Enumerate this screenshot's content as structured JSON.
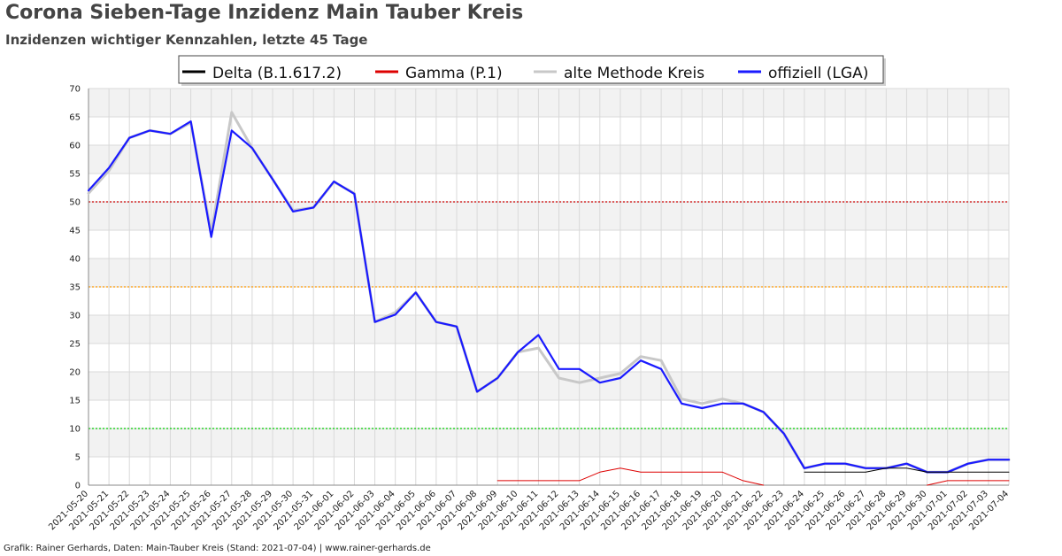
{
  "header": {
    "title": "Corona Sieben-Tage Inzidenz Main Tauber Kreis",
    "subtitle": "Inzidenzen wichtiger Kennzahlen, letzte 45 Tage"
  },
  "footer": {
    "credit": "Grafik: Rainer Gerhards, Daten: Main-Tauber Kreis (Stand: 2021-07-04) | www.rainer-gerhards.de"
  },
  "colors": {
    "band": "#f2f2f2",
    "grid": "#d9d9d9",
    "threshold_50": "#cc0000",
    "threshold_35": "#ff9900",
    "threshold_10": "#00cc00"
  },
  "chart_data": {
    "type": "line",
    "x": [
      "2021-05-20",
      "2021-05-21",
      "2021-05-22",
      "2021-05-23",
      "2021-05-24",
      "2021-05-25",
      "2021-05-26",
      "2021-05-27",
      "2021-05-28",
      "2021-05-29",
      "2021-05-30",
      "2021-05-31",
      "2021-06-01",
      "2021-06-02",
      "2021-06-03",
      "2021-06-04",
      "2021-06-05",
      "2021-06-06",
      "2021-06-07",
      "2021-06-08",
      "2021-06-09",
      "2021-06-10",
      "2021-06-11",
      "2021-06-12",
      "2021-06-13",
      "2021-06-14",
      "2021-06-15",
      "2021-06-16",
      "2021-06-17",
      "2021-06-18",
      "2021-06-19",
      "2021-06-20",
      "2021-06-21",
      "2021-06-22",
      "2021-06-23",
      "2021-06-24",
      "2021-06-25",
      "2021-06-26",
      "2021-06-27",
      "2021-06-28",
      "2021-06-29",
      "2021-06-30",
      "2021-07-01",
      "2021-07-02",
      "2021-07-03",
      "2021-07-04"
    ],
    "ylim": [
      0,
      70
    ],
    "yticks": [
      0,
      5,
      10,
      15,
      20,
      25,
      30,
      35,
      40,
      45,
      50,
      55,
      60,
      65,
      70
    ],
    "grid": true,
    "legend_position": "top-center",
    "thresholds": [
      {
        "value": 50,
        "color": "#cc0000"
      },
      {
        "value": 35,
        "color": "#ff9900"
      },
      {
        "value": 10,
        "color": "#00cc00"
      }
    ],
    "series": [
      {
        "name": "Delta (B.1.617.2)",
        "color": "#000000",
        "width": 1,
        "values": [
          null,
          null,
          null,
          null,
          null,
          null,
          null,
          null,
          null,
          null,
          null,
          null,
          null,
          null,
          null,
          null,
          null,
          null,
          null,
          null,
          null,
          null,
          null,
          null,
          null,
          null,
          null,
          null,
          null,
          null,
          null,
          null,
          null,
          null,
          null,
          2.3,
          2.3,
          2.3,
          2.3,
          3.0,
          3.0,
          2.3,
          2.3,
          2.3,
          2.3,
          2.3
        ]
      },
      {
        "name": "Gamma (P.1)",
        "color": "#dd0000",
        "width": 1,
        "values": [
          null,
          null,
          null,
          null,
          null,
          null,
          null,
          null,
          null,
          null,
          null,
          null,
          null,
          null,
          null,
          null,
          null,
          null,
          null,
          null,
          0.8,
          0.8,
          0.8,
          0.8,
          0.8,
          2.3,
          3.0,
          2.3,
          2.3,
          2.3,
          2.3,
          2.3,
          0.8,
          0,
          null,
          null,
          null,
          null,
          null,
          null,
          null,
          0,
          0.8,
          0.8,
          0.8,
          0.8
        ]
      },
      {
        "name": "alte Methode Kreis",
        "color": "#c8c8c8",
        "width": 3,
        "values": [
          51.5,
          55.5,
          61.3,
          62.6,
          62.0,
          64.0,
          44.5,
          65.8,
          59.5,
          54.0,
          48.5,
          49.0,
          53.5,
          51.5,
          28.8,
          30.5,
          34.0,
          28.8,
          28.0,
          16.5,
          18.9,
          23.5,
          24.2,
          18.9,
          18.1,
          18.9,
          19.7,
          22.7,
          22.0,
          15.2,
          14.4,
          15.2,
          14.4,
          12.9,
          9.1,
          3.0,
          3.8,
          3.8,
          3.0,
          3.0,
          3.8,
          2.3,
          2.3,
          3.8,
          4.5,
          4.5
        ]
      },
      {
        "name": "offiziell (LGA)",
        "color": "#1a1aff",
        "width": 2.2,
        "values": [
          52.0,
          56.0,
          61.3,
          62.6,
          62.0,
          64.2,
          43.8,
          62.6,
          59.5,
          54.0,
          48.3,
          49.0,
          53.6,
          51.4,
          28.8,
          30.1,
          34.0,
          28.8,
          28.0,
          16.5,
          18.9,
          23.5,
          26.5,
          20.5,
          20.5,
          18.1,
          18.9,
          22.0,
          20.5,
          14.4,
          13.6,
          14.4,
          14.4,
          12.9,
          9.1,
          3.0,
          3.8,
          3.8,
          3.0,
          3.0,
          3.8,
          2.3,
          2.3,
          3.8,
          4.5,
          4.5
        ]
      }
    ]
  }
}
